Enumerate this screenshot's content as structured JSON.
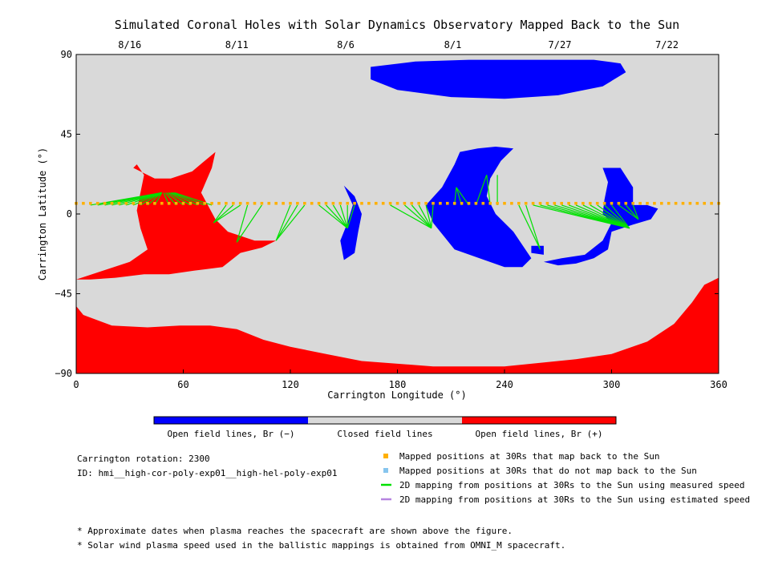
{
  "chart_data": {
    "type": "map",
    "title": "Simulated Coronal Holes with Solar Dynamics Observatory Mapped Back to the Sun",
    "xlabel": "Carrington Longitude (°)",
    "ylabel": "Carrington Latitude (°)",
    "xlim": [
      0,
      360
    ],
    "ylim": [
      -90,
      90
    ],
    "x_ticks": [
      0,
      60,
      120,
      180,
      240,
      300,
      360
    ],
    "y_ticks": [
      90,
      45,
      0,
      -45,
      -90
    ],
    "top_date_ticks": [
      {
        "label": "8/16",
        "lon": 30
      },
      {
        "label": "8/11",
        "lon": 90
      },
      {
        "label": "8/6",
        "lon": 151
      },
      {
        "label": "8/1",
        "lon": 211
      },
      {
        "label": "7/27",
        "lon": 271
      },
      {
        "label": "7/22",
        "lon": 331
      }
    ],
    "colorbar": [
      {
        "label": "Open field lines, Br (−)",
        "color": "#0000ff"
      },
      {
        "label": "Closed field lines",
        "color": "#d9d9d9"
      },
      {
        "label": "Open field lines, Br (+)",
        "color": "#ff0000"
      }
    ],
    "regions": [
      {
        "polarity": "positive",
        "color": "#ff0000",
        "points": [
          [
            0,
            -37
          ],
          [
            15,
            -32
          ],
          [
            30,
            -27
          ],
          [
            40,
            -20
          ],
          [
            36,
            -8
          ],
          [
            34,
            2
          ],
          [
            36,
            12
          ],
          [
            38,
            22
          ],
          [
            34,
            28
          ],
          [
            32,
            26
          ],
          [
            44,
            20
          ],
          [
            53,
            20
          ],
          [
            65,
            24
          ],
          [
            72,
            30
          ],
          [
            78,
            35
          ],
          [
            76,
            26
          ],
          [
            70,
            12
          ],
          [
            78,
            -3
          ],
          [
            85,
            -10
          ],
          [
            100,
            -15
          ],
          [
            112,
            -15
          ],
          [
            104,
            -19
          ],
          [
            92,
            -22
          ],
          [
            82,
            -30
          ],
          [
            66,
            -32
          ],
          [
            52,
            -34
          ],
          [
            38,
            -34
          ],
          [
            22,
            -36
          ],
          [
            8,
            -37
          ]
        ]
      },
      {
        "polarity": "positive",
        "color": "#ff0000",
        "points": [
          [
            0,
            -52
          ],
          [
            4,
            -57
          ],
          [
            20,
            -63
          ],
          [
            40,
            -64
          ],
          [
            58,
            -63
          ],
          [
            75,
            -63
          ],
          [
            90,
            -65
          ],
          [
            105,
            -71
          ],
          [
            120,
            -75
          ],
          [
            140,
            -79
          ],
          [
            160,
            -83
          ],
          [
            200,
            -86
          ],
          [
            240,
            -86
          ],
          [
            260,
            -84
          ],
          [
            280,
            -82
          ],
          [
            300,
            -79
          ],
          [
            320,
            -72
          ],
          [
            335,
            -62
          ],
          [
            345,
            -50
          ],
          [
            352,
            -40
          ],
          [
            360,
            -36
          ],
          [
            360,
            -90
          ],
          [
            0,
            -90
          ]
        ]
      },
      {
        "polarity": "negative",
        "color": "#0000ff",
        "points": [
          [
            165,
            83
          ],
          [
            190,
            86
          ],
          [
            220,
            87
          ],
          [
            260,
            87
          ],
          [
            290,
            87
          ],
          [
            305,
            85
          ],
          [
            308,
            80
          ],
          [
            295,
            72
          ],
          [
            270,
            67
          ],
          [
            240,
            65
          ],
          [
            210,
            66
          ],
          [
            180,
            70
          ],
          [
            165,
            76
          ]
        ]
      },
      {
        "polarity": "negative",
        "color": "#0000ff",
        "points": [
          [
            215,
            35
          ],
          [
            225,
            37
          ],
          [
            235,
            38
          ],
          [
            245,
            37
          ],
          [
            238,
            30
          ],
          [
            232,
            20
          ],
          [
            230,
            10
          ],
          [
            235,
            0
          ],
          [
            245,
            -10
          ],
          [
            255,
            -25
          ],
          [
            250,
            -30
          ],
          [
            240,
            -30
          ],
          [
            226,
            -25
          ],
          [
            212,
            -20
          ],
          [
            200,
            -5
          ],
          [
            196,
            5
          ],
          [
            205,
            15
          ],
          [
            212,
            28
          ]
        ]
      },
      {
        "polarity": "negative",
        "color": "#0000ff",
        "points": [
          [
            150,
            16
          ],
          [
            156,
            10
          ],
          [
            160,
            0
          ],
          [
            158,
            -10
          ],
          [
            156,
            -22
          ],
          [
            150,
            -26
          ],
          [
            148,
            -15
          ],
          [
            152,
            -5
          ],
          [
            155,
            5
          ]
        ]
      },
      {
        "polarity": "negative",
        "color": "#0000ff",
        "points": [
          [
            295,
            26
          ],
          [
            305,
            26
          ],
          [
            312,
            15
          ],
          [
            312,
            5
          ],
          [
            320,
            5
          ],
          [
            326,
            3
          ],
          [
            322,
            -3
          ],
          [
            312,
            -6
          ],
          [
            300,
            -10
          ],
          [
            298,
            -20
          ],
          [
            290,
            -25
          ],
          [
            280,
            -28
          ],
          [
            270,
            -29
          ],
          [
            262,
            -27
          ],
          [
            272,
            -25
          ],
          [
            285,
            -23
          ],
          [
            295,
            -15
          ],
          [
            300,
            -5
          ],
          [
            295,
            0
          ],
          [
            296,
            8
          ],
          [
            298,
            18
          ]
        ]
      },
      {
        "polarity": "negative",
        "color": "#0000ff",
        "points": [
          [
            255,
            -18
          ],
          [
            262,
            -18
          ],
          [
            262,
            -23
          ],
          [
            255,
            -22
          ]
        ]
      }
    ],
    "mapped_positions_color": "#ffb000",
    "mapped_positions": [
      [
        0,
        6
      ],
      [
        4,
        6
      ],
      [
        8,
        6
      ],
      [
        12,
        6
      ],
      [
        16,
        6
      ],
      [
        20,
        6
      ],
      [
        24,
        6
      ],
      [
        28,
        6
      ],
      [
        32,
        6
      ],
      [
        36,
        6
      ],
      [
        40,
        6
      ],
      [
        44,
        6
      ],
      [
        48,
        6
      ],
      [
        52,
        6
      ],
      [
        56,
        6
      ],
      [
        60,
        6
      ],
      [
        64,
        6
      ],
      [
        68,
        6
      ],
      [
        72,
        6
      ],
      [
        76,
        6
      ],
      [
        80,
        6
      ],
      [
        84,
        6
      ],
      [
        88,
        6
      ],
      [
        92,
        6
      ],
      [
        96,
        6
      ],
      [
        100,
        6
      ],
      [
        104,
        6
      ],
      [
        108,
        6
      ],
      [
        112,
        6
      ],
      [
        116,
        6
      ],
      [
        120,
        6
      ],
      [
        124,
        6
      ],
      [
        128,
        6
      ],
      [
        132,
        6
      ],
      [
        136,
        6
      ],
      [
        140,
        6
      ],
      [
        144,
        6
      ],
      [
        148,
        6
      ],
      [
        152,
        6
      ],
      [
        156,
        6
      ],
      [
        160,
        6
      ],
      [
        164,
        6
      ],
      [
        168,
        6
      ],
      [
        172,
        6
      ],
      [
        176,
        6
      ],
      [
        180,
        6
      ],
      [
        184,
        6
      ],
      [
        188,
        6
      ],
      [
        192,
        6
      ],
      [
        196,
        6
      ],
      [
        200,
        6
      ],
      [
        204,
        6
      ],
      [
        208,
        6
      ],
      [
        212,
        6
      ],
      [
        216,
        6
      ],
      [
        220,
        6
      ],
      [
        224,
        6
      ],
      [
        228,
        6
      ],
      [
        232,
        6
      ],
      [
        236,
        6
      ],
      [
        240,
        6
      ],
      [
        244,
        6
      ],
      [
        248,
        6
      ],
      [
        252,
        6
      ],
      [
        256,
        6
      ],
      [
        260,
        6
      ],
      [
        264,
        6
      ],
      [
        268,
        6
      ],
      [
        272,
        6
      ],
      [
        276,
        6
      ],
      [
        280,
        6
      ],
      [
        284,
        6
      ],
      [
        288,
        6
      ],
      [
        292,
        6
      ],
      [
        296,
        6
      ],
      [
        300,
        6
      ],
      [
        304,
        6
      ],
      [
        308,
        6
      ],
      [
        312,
        6
      ],
      [
        316,
        6
      ],
      [
        320,
        6
      ],
      [
        324,
        6
      ],
      [
        328,
        6
      ],
      [
        332,
        6
      ],
      [
        336,
        6
      ],
      [
        340,
        6
      ],
      [
        344,
        6
      ],
      [
        348,
        6
      ],
      [
        352,
        6
      ],
      [
        356,
        6
      ],
      [
        360,
        6
      ]
    ],
    "mapping_line_color": "#00e000",
    "mapping_lines": [
      [
        8,
        5,
        48,
        12
      ],
      [
        12,
        5,
        48,
        12
      ],
      [
        16,
        5,
        48,
        12
      ],
      [
        20,
        5,
        48,
        12
      ],
      [
        24,
        5,
        48,
        12
      ],
      [
        28,
        5,
        48,
        12
      ],
      [
        32,
        5,
        48,
        12
      ],
      [
        36,
        5,
        48,
        12
      ],
      [
        40,
        5,
        48,
        12
      ],
      [
        44,
        5,
        48,
        12
      ],
      [
        52,
        5,
        49,
        12
      ],
      [
        56,
        5,
        50,
        12
      ],
      [
        60,
        5,
        51,
        12
      ],
      [
        64,
        5,
        52,
        12
      ],
      [
        68,
        5,
        53,
        12
      ],
      [
        72,
        5,
        54,
        12
      ],
      [
        76,
        5,
        55,
        12
      ],
      [
        84,
        5,
        77,
        -5
      ],
      [
        88,
        5,
        77,
        -5
      ],
      [
        92,
        5,
        77,
        -5
      ],
      [
        96,
        5,
        90,
        -16
      ],
      [
        104,
        5,
        90,
        -16
      ],
      [
        120,
        5,
        112,
        -15
      ],
      [
        124,
        5,
        112,
        -15
      ],
      [
        128,
        5,
        112,
        -15
      ],
      [
        136,
        5,
        152,
        -8
      ],
      [
        140,
        5,
        152,
        -8
      ],
      [
        144,
        5,
        152,
        -8
      ],
      [
        148,
        5,
        152,
        -8
      ],
      [
        152,
        5,
        152,
        -8
      ],
      [
        156,
        5,
        152,
        -8
      ],
      [
        176,
        5,
        199,
        -8
      ],
      [
        184,
        5,
        199,
        -8
      ],
      [
        188,
        5,
        199,
        -8
      ],
      [
        192,
        5,
        199,
        -8
      ],
      [
        196,
        5,
        199,
        -8
      ],
      [
        200,
        5,
        199,
        -8
      ],
      [
        212,
        5,
        213,
        15
      ],
      [
        216,
        5,
        213,
        15
      ],
      [
        220,
        5,
        213,
        15
      ],
      [
        224,
        5,
        230,
        22
      ],
      [
        232,
        5,
        230,
        22
      ],
      [
        236,
        5,
        236,
        22
      ],
      [
        248,
        5,
        260,
        -20
      ],
      [
        252,
        5,
        260,
        -20
      ],
      [
        256,
        5,
        310,
        -8
      ],
      [
        260,
        5,
        310,
        -8
      ],
      [
        264,
        5,
        310,
        -8
      ],
      [
        268,
        5,
        310,
        -8
      ],
      [
        272,
        5,
        310,
        -8
      ],
      [
        276,
        5,
        310,
        -8
      ],
      [
        280,
        5,
        310,
        -8
      ],
      [
        284,
        5,
        310,
        -8
      ],
      [
        288,
        5,
        310,
        -8
      ],
      [
        292,
        5,
        310,
        -8
      ],
      [
        296,
        5,
        310,
        -8
      ],
      [
        300,
        5,
        310,
        -8
      ],
      [
        304,
        5,
        315,
        -3
      ],
      [
        308,
        5,
        315,
        -3
      ],
      [
        312,
        5,
        315,
        -3
      ]
    ],
    "legend": [
      {
        "kind": "square",
        "color": "#ffb000",
        "label": "Mapped positions at 30Rs that map back to the Sun"
      },
      {
        "kind": "square",
        "color": "#87c5ee",
        "label": "Mapped positions at 30Rs that do not map back to the Sun"
      },
      {
        "kind": "line",
        "color": "#00e000",
        "label": "2D mapping from positions at 30Rs to the Sun using measured speed"
      },
      {
        "kind": "line",
        "color": "#b684e0",
        "label": "2D mapping from positions at 30Rs to the Sun using estimated speed"
      }
    ]
  },
  "info": {
    "rotation": "Carrington rotation: 2300",
    "id": "ID: hmi__high-cor-poly-exp01__high-hel-poly-exp01"
  },
  "notes": [
    "* Approximate dates when plasma reaches the spacecraft are shown above the figure.",
    "* Solar wind plasma speed used in the ballistic mappings is obtained from OMNI_M spacecraft."
  ]
}
